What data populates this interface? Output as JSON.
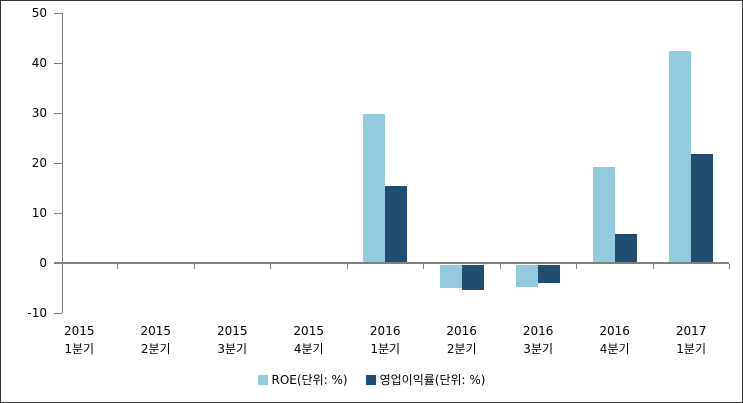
{
  "chart": {
    "background_color": "#FFFFFF",
    "border_color": "#333333",
    "axis_color": "#808080",
    "text_color": "#000000"
  },
  "chart_data": {
    "type": "bar",
    "title": "",
    "xlabel": "",
    "ylabel": "",
    "categories": [
      "2015 1분기",
      "2015 2분기",
      "2015 3분기",
      "2015 4분기",
      "2016 1분기",
      "2016 2분기",
      "2016 3분기",
      "2016 4분기",
      "2017 1분기"
    ],
    "category_labels": [
      [
        "2015",
        "1분기"
      ],
      [
        "2015",
        "2분기"
      ],
      [
        "2015",
        "3분기"
      ],
      [
        "2015",
        "4분기"
      ],
      [
        "2016",
        "1분기"
      ],
      [
        "2016",
        "2분기"
      ],
      [
        "2016",
        "3분기"
      ],
      [
        "2016",
        "4분기"
      ],
      [
        "2017",
        "1분기"
      ]
    ],
    "series": [
      {
        "name": "ROE(단위: %)",
        "color": "#92CBDC",
        "values": [
          0,
          0,
          0,
          0,
          29.8,
          -4.6,
          -4.3,
          19.3,
          42.4
        ]
      },
      {
        "name": "영업이익률(단위: %)",
        "color": "#204D70",
        "values": [
          0,
          0,
          0,
          0,
          15.5,
          -4.9,
          -3.5,
          5.8,
          21.9
        ]
      }
    ],
    "ylim": [
      -10,
      50
    ],
    "yticks": [
      50,
      40,
      30,
      20,
      10,
      0,
      -10
    ],
    "grid": false,
    "legend_position": "bottom"
  }
}
